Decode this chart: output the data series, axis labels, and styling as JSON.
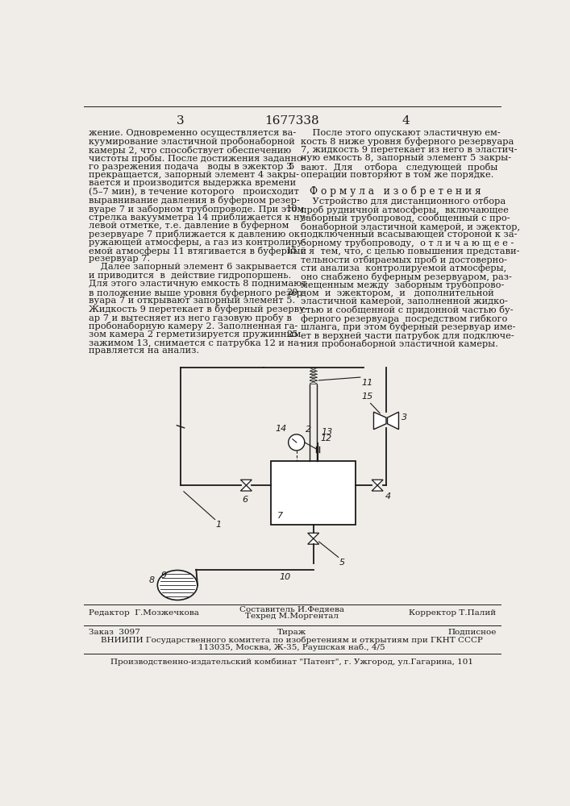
{
  "page_color": "#f0ede8",
  "text_color": "#1a1a1a",
  "header_left_num": "3",
  "header_center": "1677338",
  "header_right_num": "4",
  "col_left_text": [
    "жение. Одновременно осуществляется ва-",
    "куумирование эластичной пробонаборной",
    "камеры 2, что способствует обеспечению",
    "чистоты пробы. После достижения заданно-",
    "го разрежения подача   воды в эжектор 3",
    "прекращается, запорный элемент 4 закры-",
    "вается и производится выдержка времени",
    "(5–7 мин), в течение которого   происходит",
    "выравнивание давления в буферном резер-",
    "вуаре 7 и заборном трубопроводе. При этом",
    "стрелка вакуумметра 14 приближается к ну-",
    "левой отметке, т.е. давление в буферном",
    "резервуаре 7 приближается к давлению ок-",
    "ружающей атмосферы, а газ из контролиру-",
    "емой атмосферы 11 втягивается в буферный",
    "резервуар 7.",
    "    Далее запорный элемент 6 закрывается",
    "и приводится  в  действие гидропоршень.",
    "Для этого эластичную емкость 8 поднимают",
    "в положение выше уровня буферного резер-",
    "вуара 7 и открывают запорный элемент 5.",
    "Жидкость 9 перетекает в буферный резерву-",
    "ар 7 и вытесняет из него газовую пробу в",
    "пробонаборную камеру 2. Заполненная га-",
    "зом камера 2 герметизируется пружинным",
    "зажимом 13, снимается с патрубка 12 и на-",
    "правляется на анализ."
  ],
  "line_numbers": [
    5,
    10,
    15,
    20,
    25
  ],
  "line_number_rows": [
    4,
    9,
    14,
    19,
    24
  ],
  "col_right_text_top": [
    "    После этого опускают эластичную ем-",
    "кость 8 ниже уровня буферного резервуара",
    "7, жидкость 9 перетекает из него в эластич-",
    "ную емкость 8, запорный элемент 5 закры-",
    "вают.  Для    отбора   следующей  пробы",
    "операции повторяют в том же порядке."
  ],
  "formula_header": "Ф о р м у л а   и з о б р е т е н и я",
  "formula_text": [
    "    Устройство для дистанционного отбора",
    "проб рудничной атмосферы,  включающее",
    "заборный трубопровод, сообщенный с про-",
    "бонаборной эластичной камерой, и эжектор,",
    "подключенный всасывающей стороной к за-",
    "борному трубопроводу,  о т л и ч а ю щ е е -",
    "с я  тем, что, с целью повышения представи-",
    "тельности отбираемых проб и достоверно-",
    "сти анализа  контролируемой атмосферы,",
    "оно снабжено буферным резервуаром, раз-",
    "мещенным между  заборным трубопрово-",
    "дом  и  эжектором,  и   дополнительной",
    "эластичной камерой, заполненной жидко-",
    "стью и сообщенной с придонной частью бу-",
    "ферного резервуара  посредством гибкого",
    "шланга, при этом буферный резервуар име-",
    "ет в верхней части патрубок для подключе-",
    "ния пробонаборной эластичной камеры."
  ],
  "footer_redaktor": "Редактор  Г.Мозжечкова",
  "footer_sestavitel": "Составитель И.Федяева",
  "footer_tehred": "Техред М.Моргентал",
  "footer_korrektor": "Корректор Т.Палий",
  "footer_zakaz": "Заказ  3097",
  "footer_tirazh": "Тираж",
  "footer_podpisnoe": "Подписное",
  "footer_vniiipi": "ВНИИПИ Государственного комитета по изобретениям и открытиям при ГКНТ СССР",
  "footer_address": "113035, Москва, Ж-35, Раушская наб., 4/5",
  "footer_proizv": "Производственно-издательский комбинат \"Патент\", г. Ужгород, ул.Гагарина, 101"
}
